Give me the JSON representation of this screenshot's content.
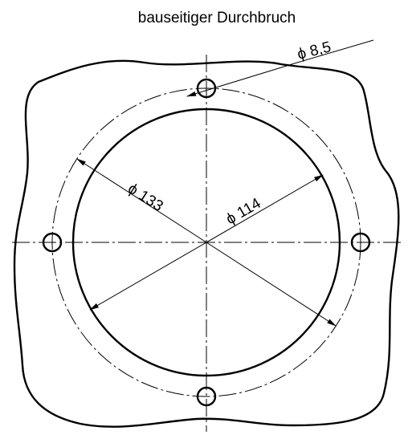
{
  "title": "bauseitiger Durchbruch",
  "dimensions": [
    {
      "label": "ϕ 8,5"
    },
    {
      "label": "ϕ 133"
    },
    {
      "label": "ϕ 114"
    }
  ]
}
